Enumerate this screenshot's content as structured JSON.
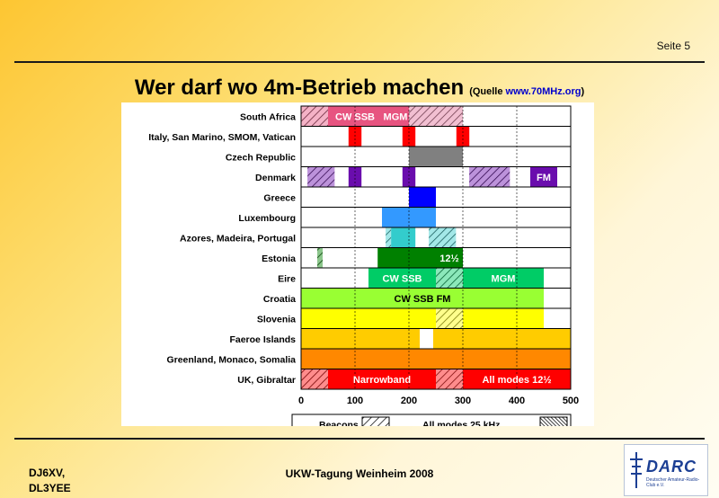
{
  "header": {
    "page_label": "Seite 5"
  },
  "title": {
    "main": "Wer darf wo 4m-Betrieb machen",
    "source_prefix": "(Quelle ",
    "source_link": "www.70MHz.org",
    "source_suffix": ")"
  },
  "footer": {
    "author_line1": "DJ6XV,",
    "author_line2": "DL3YEE",
    "event": "UKW-Tagung Weinheim 2008",
    "logo_text": "DARC",
    "logo_subtext": "Deutscher Amateur-Radio-Club e.V."
  },
  "colors": {
    "red": "#ff0000",
    "pink": "#e75480",
    "hatch_pink": "#e07098",
    "gray": "#808080",
    "purple": "#6a0dad",
    "blue": "#0000ff",
    "light_blue": "#3399ff",
    "cyan": "#33cccc",
    "dark_green": "#008000",
    "green": "#00cc66",
    "lime": "#99ff33",
    "yellow": "#ffff00",
    "gold": "#ffcc00",
    "orange": "#ff8800"
  },
  "chart_data": {
    "type": "bar",
    "subtype": "horizontal-range",
    "x_unit": "kHz above 70 MHz",
    "xlim": [
      0,
      500
    ],
    "xticks": [
      0,
      100,
      200,
      300,
      400,
      500
    ],
    "grid": true,
    "rows": [
      {
        "label": "South Africa",
        "segments": [
          {
            "start": 0,
            "end": 50,
            "color": "pink",
            "hatch": true
          },
          {
            "start": 50,
            "end": 150,
            "color": "pink",
            "text": "CW SSB"
          },
          {
            "start": 150,
            "end": 200,
            "color": "pink",
            "text": "MGM"
          },
          {
            "start": 200,
            "end": 300,
            "color": "hatch_pink",
            "hatch": true
          }
        ]
      },
      {
        "label": "Italy, San Marino, SMOM, Vatican",
        "segments": [
          {
            "start": 88,
            "end": 112,
            "color": "red"
          },
          {
            "start": 188,
            "end": 212,
            "color": "red"
          },
          {
            "start": 288,
            "end": 312,
            "color": "red"
          }
        ]
      },
      {
        "label": "Czech Republic",
        "segments": [
          {
            "start": 200,
            "end": 300,
            "color": "gray"
          }
        ]
      },
      {
        "label": "Denmark",
        "segments": [
          {
            "start": 12,
            "end": 62,
            "color": "purple",
            "hatch": true
          },
          {
            "start": 88,
            "end": 112,
            "color": "purple"
          },
          {
            "start": 188,
            "end": 212,
            "color": "purple"
          },
          {
            "start": 312,
            "end": 387,
            "color": "purple",
            "hatch": true
          },
          {
            "start": 425,
            "end": 475,
            "color": "purple",
            "text": "FM"
          }
        ]
      },
      {
        "label": "Greece",
        "segments": [
          {
            "start": 200,
            "end": 250,
            "color": "blue"
          }
        ]
      },
      {
        "label": "Luxembourg",
        "segments": [
          {
            "start": 150,
            "end": 250,
            "color": "light_blue"
          }
        ]
      },
      {
        "label": "Azores, Madeira, Portugal",
        "segments": [
          {
            "start": 157,
            "end": 167,
            "color": "cyan",
            "hatch": true
          },
          {
            "start": 167,
            "end": 212,
            "color": "cyan"
          },
          {
            "start": 237,
            "end": 287,
            "color": "cyan",
            "hatch": true
          }
        ]
      },
      {
        "label": "Estonia",
        "segments": [
          {
            "start": 30,
            "end": 40,
            "color": "dark_green",
            "hatch": true
          },
          {
            "start": 142,
            "end": 250,
            "color": "dark_green"
          },
          {
            "start": 250,
            "end": 300,
            "color": "dark_green",
            "text": "12½"
          }
        ]
      },
      {
        "label": "Eire",
        "segments": [
          {
            "start": 125,
            "end": 250,
            "color": "green",
            "text": "CW SSB"
          },
          {
            "start": 250,
            "end": 300,
            "color": "green",
            "hatch": true
          },
          {
            "start": 300,
            "end": 450,
            "color": "green",
            "text": "MGM"
          }
        ]
      },
      {
        "label": "Croatia",
        "segments": [
          {
            "start": 0,
            "end": 450,
            "color": "lime",
            "text": "CW SSB FM"
          }
        ]
      },
      {
        "label": "Slovenia",
        "segments": [
          {
            "start": 0,
            "end": 250,
            "color": "yellow"
          },
          {
            "start": 250,
            "end": 300,
            "color": "yellow",
            "hatch": true
          },
          {
            "start": 300,
            "end": 450,
            "color": "yellow"
          }
        ]
      },
      {
        "label": "Faeroe Islands",
        "segments": [
          {
            "start": 0,
            "end": 220,
            "color": "gold"
          },
          {
            "start": 245,
            "end": 500,
            "color": "gold"
          }
        ]
      },
      {
        "label": "Greenland, Monaco, Somalia",
        "segments": [
          {
            "start": 0,
            "end": 500,
            "color": "orange"
          }
        ]
      },
      {
        "label": "UK, Gibraltar",
        "segments": [
          {
            "start": 0,
            "end": 50,
            "color": "red",
            "hatch": true
          },
          {
            "start": 50,
            "end": 250,
            "color": "red",
            "text": "Narrowband"
          },
          {
            "start": 250,
            "end": 300,
            "color": "red",
            "hatch": true
          },
          {
            "start": 300,
            "end": 500,
            "color": "red",
            "text": "All modes 12½"
          }
        ]
      }
    ],
    "legend": [
      {
        "label": "Beacons",
        "style": "hatch-sparse"
      },
      {
        "label": "All modes 25 kHz",
        "style": "hatch-dense"
      }
    ]
  }
}
